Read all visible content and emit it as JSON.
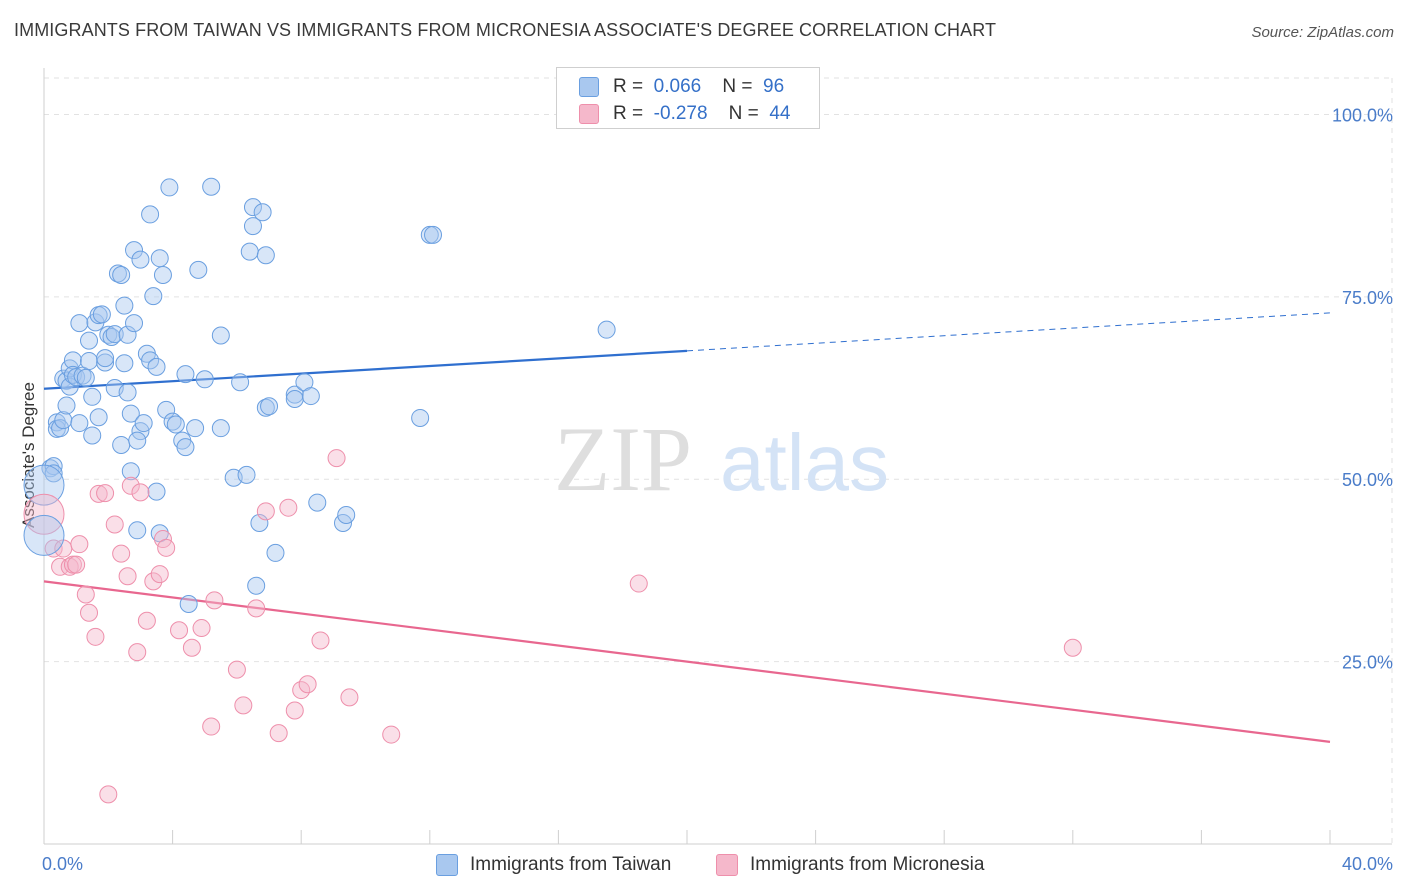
{
  "title": "IMMIGRANTS FROM TAIWAN VS IMMIGRANTS FROM MICRONESIA ASSOCIATE'S DEGREE CORRELATION CHART",
  "source": "Source: ZipAtlas.com",
  "watermark": {
    "zip": "ZIP",
    "atlas": "atlas"
  },
  "legend": {
    "rows": [
      {
        "r_label": "R =",
        "r_value": "0.066",
        "n_label": "N =",
        "n_value": "96",
        "color": "#a9c8ef"
      },
      {
        "r_label": "R =",
        "r_value": "-0.278",
        "n_label": "N =",
        "n_value": "44",
        "color": "#f5b8cb"
      }
    ]
  },
  "bottom_legend": [
    {
      "label": "Immigrants from Taiwan",
      "color": "#a9c8ef"
    },
    {
      "label": "Immigrants from Micronesia",
      "color": "#f5b8cb"
    }
  ],
  "chart_data": {
    "type": "scatter",
    "title": "IMMIGRANTS FROM TAIWAN VS IMMIGRANTS FROM MICRONESIA ASSOCIATE'S DEGREE CORRELATION CHART",
    "xlabel": "",
    "ylabel": "Associate's Degree",
    "xlim": [
      0,
      40
    ],
    "ylim": [
      0,
      105
    ],
    "x_tick_labels": [
      "0.0%",
      "40.0%"
    ],
    "y_ticks": [
      25,
      50,
      75,
      100
    ],
    "y_tick_labels": [
      "25.0%",
      "50.0%",
      "75.0%",
      "100.0%"
    ],
    "grid": true,
    "series": [
      {
        "name": "Immigrants from Taiwan",
        "color": "#6a9fe0",
        "fill": "#a9c8ef",
        "trend": {
          "x0": 0,
          "y0": 62.4,
          "x1": 20,
          "y1": 67.6,
          "dash_to_x": 40,
          "dash_to_y": 72.8,
          "color": "#2f6fcf"
        },
        "points": [
          [
            0.2,
            51.5
          ],
          [
            0.3,
            51.8
          ],
          [
            0.3,
            50.8
          ],
          [
            0.4,
            57.8
          ],
          [
            0.4,
            56.9
          ],
          [
            0.5,
            57.0
          ],
          [
            0.6,
            58.1
          ],
          [
            0.6,
            63.8
          ],
          [
            0.7,
            63.5
          ],
          [
            0.7,
            60.1
          ],
          [
            0.8,
            62.7
          ],
          [
            0.8,
            65.2
          ],
          [
            0.9,
            66.3
          ],
          [
            0.9,
            64.3
          ],
          [
            1.0,
            64.0
          ],
          [
            1.1,
            71.4
          ],
          [
            1.1,
            57.7
          ],
          [
            1.2,
            64.2
          ],
          [
            1.3,
            63.9
          ],
          [
            1.4,
            69.0
          ],
          [
            1.4,
            66.2
          ],
          [
            1.5,
            61.3
          ],
          [
            1.5,
            56.0
          ],
          [
            1.6,
            71.5
          ],
          [
            1.7,
            58.5
          ],
          [
            1.7,
            72.5
          ],
          [
            1.8,
            72.6
          ],
          [
            1.9,
            66.0
          ],
          [
            1.9,
            66.6
          ],
          [
            2.0,
            69.8
          ],
          [
            2.1,
            69.5
          ],
          [
            2.2,
            62.5
          ],
          [
            2.2,
            69.9
          ],
          [
            2.3,
            78.2
          ],
          [
            2.4,
            78.0
          ],
          [
            2.4,
            54.7
          ],
          [
            2.5,
            73.8
          ],
          [
            2.5,
            65.9
          ],
          [
            2.6,
            69.8
          ],
          [
            2.6,
            61.9
          ],
          [
            2.7,
            59.0
          ],
          [
            2.7,
            51.1
          ],
          [
            2.8,
            71.4
          ],
          [
            2.8,
            81.4
          ],
          [
            2.9,
            43.0
          ],
          [
            3.0,
            80.1
          ],
          [
            3.0,
            56.6
          ],
          [
            3.1,
            57.7
          ],
          [
            3.2,
            67.2
          ],
          [
            3.3,
            86.3
          ],
          [
            3.3,
            66.3
          ],
          [
            3.4,
            75.1
          ],
          [
            3.5,
            65.4
          ],
          [
            3.5,
            48.3
          ],
          [
            3.6,
            42.6
          ],
          [
            3.6,
            80.3
          ],
          [
            3.7,
            78.0
          ],
          [
            3.8,
            59.5
          ],
          [
            3.9,
            90.0
          ],
          [
            4.0,
            57.9
          ],
          [
            4.1,
            57.5
          ],
          [
            4.3,
            55.3
          ],
          [
            4.4,
            64.4
          ],
          [
            4.4,
            54.4
          ],
          [
            4.5,
            32.9
          ],
          [
            4.7,
            57.0
          ],
          [
            4.8,
            78.7
          ],
          [
            5.0,
            63.7
          ],
          [
            5.2,
            90.1
          ],
          [
            5.5,
            69.7
          ],
          [
            5.9,
            50.2
          ],
          [
            6.1,
            63.3
          ],
          [
            6.3,
            50.6
          ],
          [
            6.4,
            81.2
          ],
          [
            6.5,
            87.3
          ],
          [
            6.5,
            84.7
          ],
          [
            6.6,
            35.4
          ],
          [
            6.7,
            44.0
          ],
          [
            6.8,
            86.6
          ],
          [
            6.9,
            59.8
          ],
          [
            6.9,
            80.7
          ],
          [
            7.0,
            60.0
          ],
          [
            7.2,
            39.9
          ],
          [
            7.8,
            61.6
          ],
          [
            7.8,
            61.0
          ],
          [
            8.1,
            63.3
          ],
          [
            8.3,
            61.4
          ],
          [
            8.5,
            46.8
          ],
          [
            9.3,
            44.0
          ],
          [
            9.4,
            45.1
          ],
          [
            11.7,
            58.4
          ],
          [
            12.0,
            83.5
          ],
          [
            12.1,
            83.5
          ],
          [
            17.5,
            70.5
          ],
          [
            2.9,
            55.3
          ],
          [
            5.5,
            57.0
          ]
        ]
      },
      {
        "name": "Immigrants from Micronesia",
        "color": "#ee8fab",
        "fill": "#f5b8cb",
        "trend": {
          "x0": 0,
          "y0": 36.0,
          "x1": 40,
          "y1": 14.0,
          "color": "#e8678f"
        },
        "points": [
          [
            0.3,
            40.5
          ],
          [
            0.5,
            38.0
          ],
          [
            0.6,
            40.5
          ],
          [
            0.8,
            38.0
          ],
          [
            0.9,
            38.3
          ],
          [
            1.1,
            41.1
          ],
          [
            1.3,
            34.2
          ],
          [
            1.4,
            31.7
          ],
          [
            1.6,
            28.4
          ],
          [
            1.7,
            48.0
          ],
          [
            1.9,
            48.1
          ],
          [
            2.2,
            43.8
          ],
          [
            2.4,
            39.8
          ],
          [
            2.6,
            36.7
          ],
          [
            2.7,
            49.1
          ],
          [
            2.9,
            26.3
          ],
          [
            3.0,
            48.2
          ],
          [
            3.2,
            30.6
          ],
          [
            3.4,
            36.0
          ],
          [
            3.6,
            37.0
          ],
          [
            3.7,
            41.8
          ],
          [
            3.8,
            40.6
          ],
          [
            4.2,
            29.3
          ],
          [
            4.6,
            26.9
          ],
          [
            4.9,
            29.6
          ],
          [
            5.2,
            16.1
          ],
          [
            5.3,
            33.4
          ],
          [
            6.0,
            23.9
          ],
          [
            6.2,
            19.0
          ],
          [
            6.6,
            32.3
          ],
          [
            6.9,
            45.6
          ],
          [
            7.3,
            15.2
          ],
          [
            7.6,
            46.1
          ],
          [
            7.8,
            18.3
          ],
          [
            8.0,
            21.1
          ],
          [
            8.2,
            21.9
          ],
          [
            8.6,
            27.9
          ],
          [
            9.1,
            52.9
          ],
          [
            9.5,
            20.1
          ],
          [
            10.8,
            15.0
          ],
          [
            18.5,
            35.7
          ],
          [
            32.0,
            26.9
          ],
          [
            2.0,
            6.8
          ],
          [
            1.0,
            38.3
          ]
        ]
      }
    ],
    "large_markers": [
      {
        "series": "Immigrants from Taiwan",
        "x": 0.0,
        "y": 49.2
      },
      {
        "series": "Immigrants from Micronesia",
        "x": 0.0,
        "y": 45.2
      },
      {
        "series": "Immigrants from Taiwan",
        "x": 0.0,
        "y": 42.3
      }
    ]
  }
}
